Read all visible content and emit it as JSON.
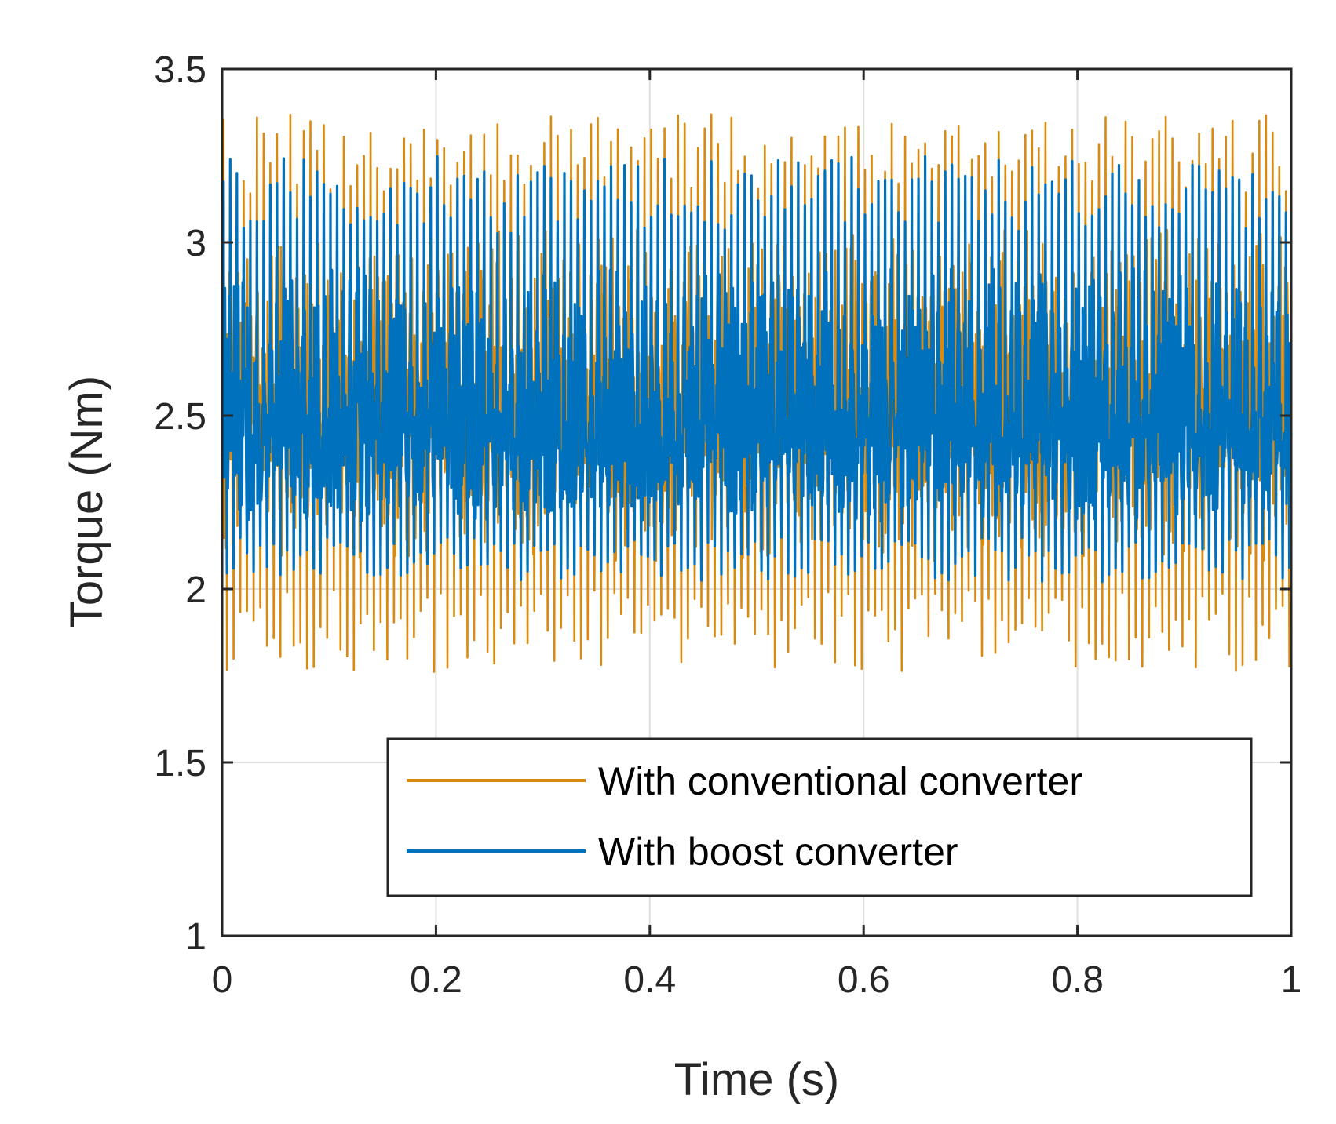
{
  "chart_data": {
    "type": "line",
    "title": "",
    "xlabel": "Time (s)",
    "ylabel": "Torque (Nm)",
    "xlim": [
      0,
      1
    ],
    "ylim": [
      1,
      3.5
    ],
    "xticks": [
      "0",
      "0.2",
      "0.4",
      "0.6",
      "0.8",
      "1"
    ],
    "yticks": [
      "1",
      "1.5",
      "2",
      "2.5",
      "3",
      "3.5"
    ],
    "grid": true,
    "legend_position": "bottom-right",
    "series": [
      {
        "name": "With conventional converter",
        "color": "#D95319",
        "stroke": "#D98A10",
        "mean": 2.55,
        "max": 3.37,
        "min": 1.76,
        "approx_cycles": 160
      },
      {
        "name": "With boost converter",
        "color": "#0072BD",
        "mean": 2.45,
        "max": 3.25,
        "min": 2.02,
        "approx_cycles": 160
      }
    ]
  }
}
